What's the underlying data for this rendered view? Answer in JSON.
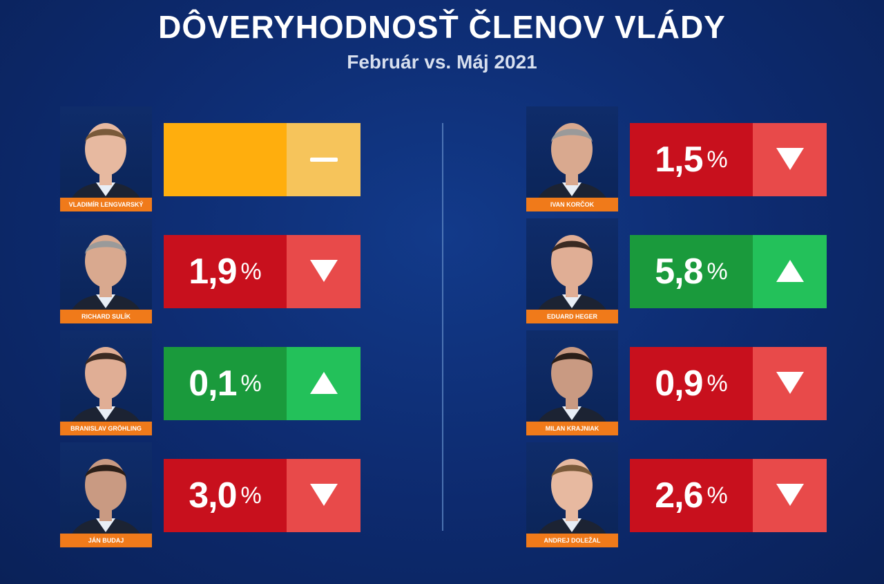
{
  "title": "DÔVERYHODNOSŤ ČLENOV VLÁDY",
  "subtitle": "Február vs. Máj 2021",
  "colors": {
    "down_value": "#c8101d",
    "down_arrow": "#e84a4a",
    "up_value": "#1a9a3c",
    "up_arrow": "#23c15a",
    "neutral_value": "#ffae0d",
    "neutral_arrow": "#f6c45b",
    "nameplate": "#f07a1a"
  },
  "left": [
    {
      "name": "VLADIMÍR LENGVARSKÝ",
      "value": "",
      "unit": "",
      "trend": "neutral",
      "indicator": "dash-icon"
    },
    {
      "name": "RICHARD SULÍK",
      "value": "1,9",
      "unit": "%",
      "trend": "down",
      "indicator": "triangle-down-icon"
    },
    {
      "name": "BRANISLAV GRÖHLING",
      "value": "0,1",
      "unit": "%",
      "trend": "up",
      "indicator": "triangle-up-icon"
    },
    {
      "name": "JÁN BUDAJ",
      "value": "3,0",
      "unit": "%",
      "trend": "down",
      "indicator": "triangle-down-icon"
    }
  ],
  "right": [
    {
      "name": "IVAN KORČOK",
      "value": "1,5",
      "unit": "%",
      "trend": "down",
      "indicator": "triangle-down-icon"
    },
    {
      "name": "EDUARD HEGER",
      "value": "5,8",
      "unit": "%",
      "trend": "up",
      "indicator": "triangle-up-icon"
    },
    {
      "name": "MILAN KRAJNIAK",
      "value": "0,9",
      "unit": "%",
      "trend": "down",
      "indicator": "triangle-down-icon"
    },
    {
      "name": "ANDREJ DOLEŽAL",
      "value": "2,6",
      "unit": "%",
      "trend": "down",
      "indicator": "triangle-down-icon"
    }
  ]
}
